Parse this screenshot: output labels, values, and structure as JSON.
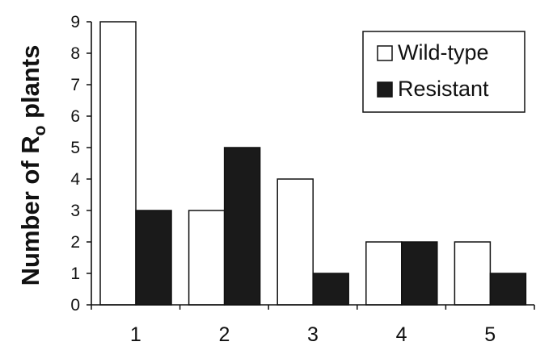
{
  "chart_data": {
    "type": "bar",
    "categories": [
      "1",
      "2",
      "3",
      "4",
      "5"
    ],
    "series": [
      {
        "name": "Wild-type",
        "values": [
          9,
          3,
          4,
          2,
          2
        ],
        "color": "#ffffff"
      },
      {
        "name": "Resistant",
        "values": [
          3,
          5,
          1,
          2,
          1
        ],
        "color": "#1a1a1a"
      }
    ],
    "title": "",
    "xlabel": "",
    "ylabel": "Number of R",
    "ylabel_subscript": "o",
    "ylabel_suffix": " plants",
    "ylim": [
      0,
      9
    ],
    "yticks": [
      "0",
      "1",
      "2",
      "3",
      "4",
      "5",
      "6",
      "7",
      "8",
      "9"
    ],
    "grid": false,
    "legend_position": "top-right"
  }
}
